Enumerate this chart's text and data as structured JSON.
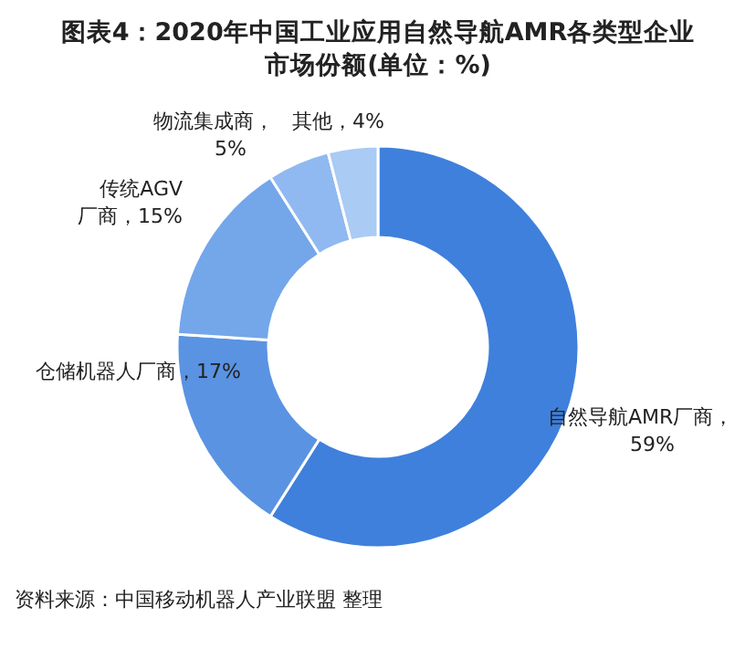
{
  "chart_data": {
    "type": "donut",
    "title": "图表4：2020年中国工业应用自然导航AMR各类型企业市场份额(单位：%)",
    "categories": [
      "自然导航AMR厂商",
      "仓储机器人厂商",
      "传统AGV厂商",
      "物流集成商",
      "其他"
    ],
    "values": [
      59,
      17,
      15,
      5,
      4
    ],
    "value_labels": [
      "，59%",
      "，17%",
      "，15%",
      "，5%",
      "，4%"
    ],
    "colors": [
      "#3f80dc",
      "#5a93e2",
      "#74a6ea",
      "#8fb9f0",
      "#a9cbf4"
    ],
    "annotations": [
      "资料来源：中国移动机器人产业联盟 整理"
    ]
  }
}
